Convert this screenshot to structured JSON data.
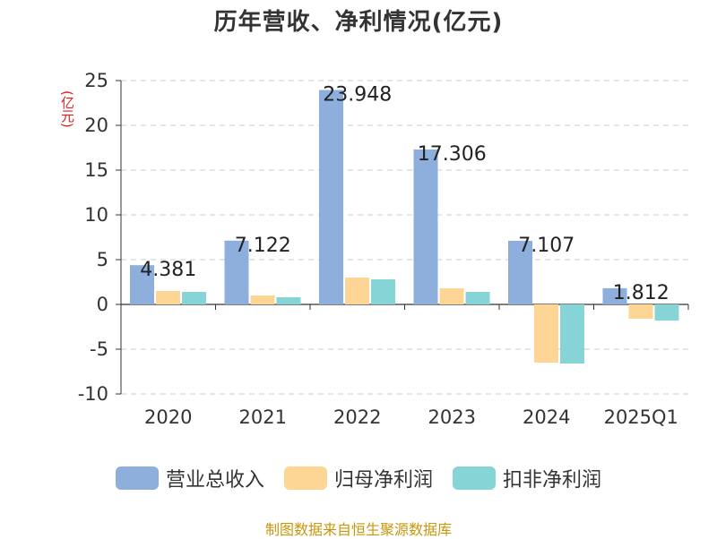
{
  "title": "历年营收、净利情况(亿元)",
  "unit_label": "(亿元)",
  "source_note": "制图数据来自恒生聚源数据库",
  "colors": {
    "revenue": "#8eaedb",
    "net_profit": "#fdd595",
    "deducted_profit": "#87d4d7",
    "grid": "#cccccc",
    "axis": "#333333",
    "unit_label": "#e02020",
    "source": "#c8960c"
  },
  "chart_data": {
    "type": "bar",
    "title": "历年营收、净利情况(亿元)",
    "categories": [
      "2020",
      "2021",
      "2022",
      "2023",
      "2024",
      "2025Q1"
    ],
    "series": [
      {
        "name": "营业总收入",
        "color_key": "revenue",
        "values": [
          4.381,
          7.122,
          23.948,
          17.306,
          7.107,
          1.812
        ]
      },
      {
        "name": "归母净利润",
        "color_key": "net_profit",
        "values": [
          1.5,
          1.0,
          3.0,
          1.8,
          -6.5,
          -1.6
        ]
      },
      {
        "name": "扣非净利润",
        "color_key": "deducted_profit",
        "values": [
          1.4,
          0.8,
          2.8,
          1.4,
          -6.6,
          -1.8
        ]
      }
    ],
    "data_labels": [
      "4.381",
      "7.122",
      "23.948",
      "17.306",
      "7.107",
      "1.812"
    ],
    "ylim": [
      -10,
      25
    ],
    "yticks": [
      "25",
      "20",
      "15",
      "10",
      "5",
      "0",
      "-5",
      "-10"
    ],
    "grid": true,
    "legend_position": "bottom"
  }
}
